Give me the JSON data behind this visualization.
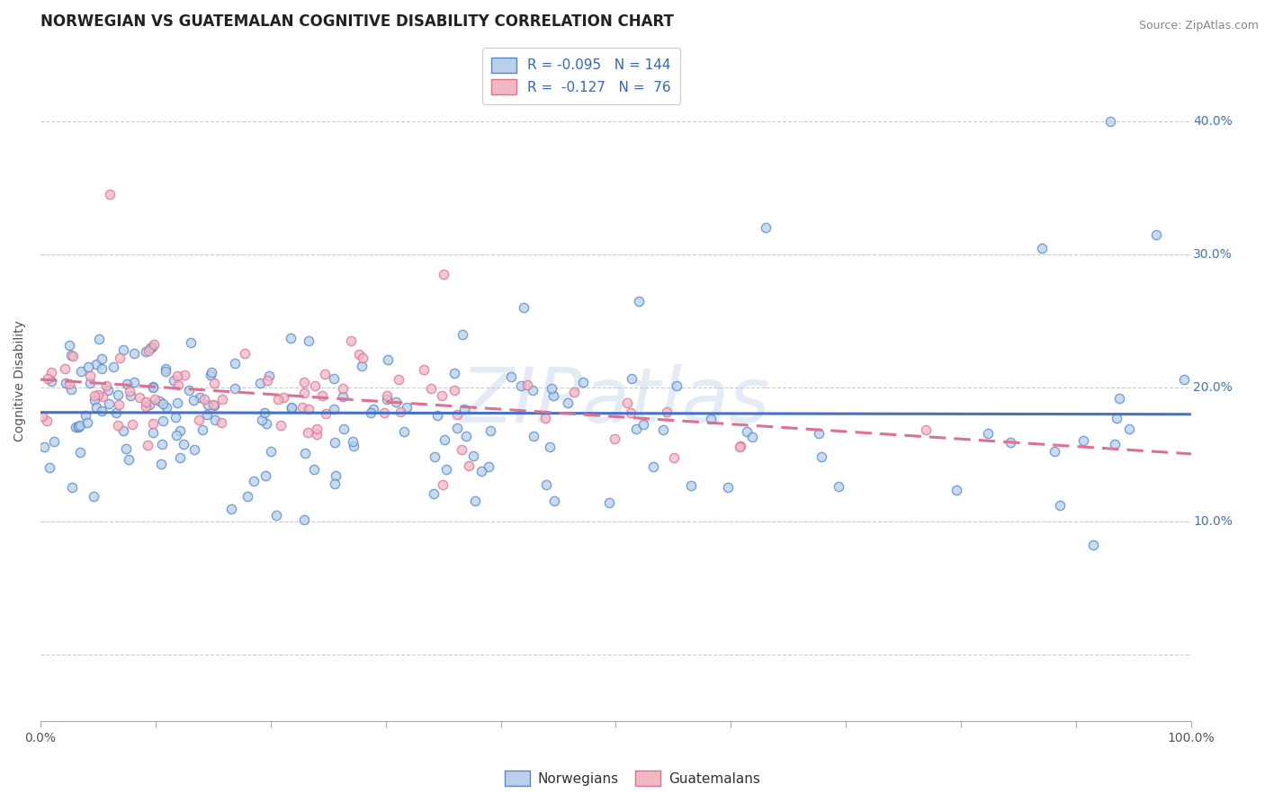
{
  "title": "NORWEGIAN VS GUATEMALAN COGNITIVE DISABILITY CORRELATION CHART",
  "source_text": "Source: ZipAtlas.com",
  "ylabel": "Cognitive Disability",
  "watermark": "ZIPatlas",
  "legend_norwegian": {
    "R": -0.095,
    "N": 144,
    "fill_color": "#b8d0ea",
    "edge_color": "#5588cc",
    "line_color": "#4472c4"
  },
  "legend_guatemalan": {
    "R": -0.127,
    "N": 76,
    "fill_color": "#f2b8c6",
    "edge_color": "#e07090",
    "line_color": "#e07090"
  },
  "ytick_positions": [
    0.0,
    0.1,
    0.2,
    0.3,
    0.4
  ],
  "ytick_labels": [
    "",
    "10.0%",
    "20.0%",
    "30.0%",
    "40.0%"
  ],
  "xlim": [
    0.0,
    1.0
  ],
  "ylim": [
    -0.05,
    0.46
  ],
  "background_color": "#ffffff",
  "grid_color": "#cccccc",
  "dot_size": 55,
  "dot_linewidth": 1.0,
  "title_fontsize": 12,
  "axis_label_fontsize": 10,
  "tick_fontsize": 10,
  "legend_fontsize": 11,
  "right_label_color": "#4472c4",
  "nor_line_start_y": 0.188,
  "nor_line_end_y": 0.158,
  "guat_line_start_y": 0.2,
  "guat_line_end_y": 0.157
}
